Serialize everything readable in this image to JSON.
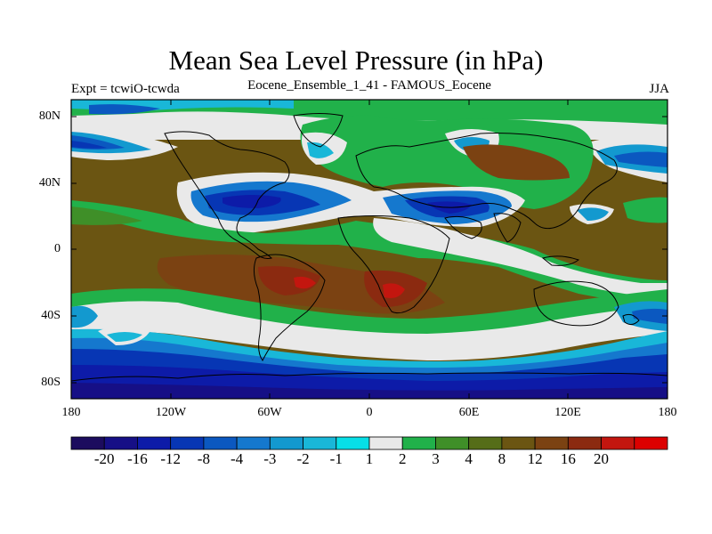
{
  "header": {
    "title": "Mean Sea Level Pressure (in hPa)",
    "left_label": "Expt = tcwiO-tcwda",
    "subtitle": "Eocene_Ensemble_1_41 - FAMOUS_Eocene",
    "season": "JJA"
  },
  "axes": {
    "lat_ticks": [
      "80N",
      "40N",
      "0",
      "40S",
      "80S"
    ],
    "lon_ticks": [
      "180",
      "120W",
      "60W",
      "0",
      "60E",
      "120E",
      "180"
    ]
  },
  "colorbar": {
    "labels": [
      "-20",
      "-16",
      "-12",
      "-8",
      "-4",
      "-3",
      "-2",
      "-1",
      "1",
      "2",
      "3",
      "4",
      "8",
      "12",
      "16",
      "20"
    ],
    "colors": [
      "#1c0c5e",
      "#160f86",
      "#0d1ba8",
      "#0736b4",
      "#0b58c0",
      "#1578ce",
      "#1399cf",
      "#19b7d8",
      "#07dfe7",
      "#e9e9e9",
      "#21b14a",
      "#3f8f28",
      "#556d18",
      "#6b5512",
      "#7b4212",
      "#8b2a10",
      "#c3160f",
      "#dc0000"
    ]
  },
  "colors": {
    "ocean_background": "#6b5512",
    "coastline": "#000000"
  }
}
